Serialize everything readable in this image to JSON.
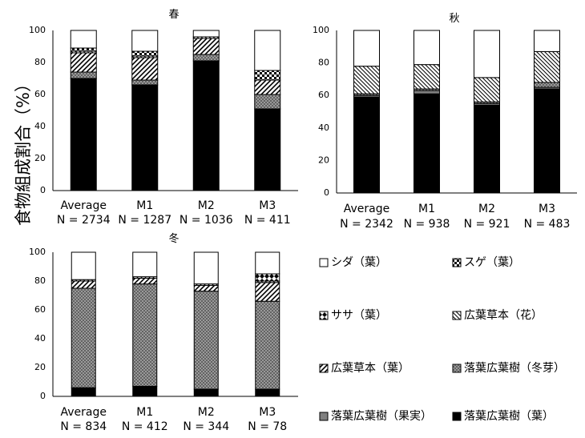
{
  "y_axis_label": "食物組成割合（%）",
  "chart_data": [
    {
      "type": "bar",
      "stacked": true,
      "title": "春",
      "ylim": [
        0,
        100
      ],
      "yticks": [
        "0",
        "20",
        "40",
        "60",
        "80",
        "100"
      ],
      "categories": [
        "Average",
        "M1",
        "M2",
        "M3"
      ],
      "sample_sizes": [
        "N = 2734",
        "N = 1287",
        "N = 1036",
        "N = 411"
      ],
      "series": [
        {
          "name": "落葉広葉樹（葉）",
          "values": [
            70,
            66,
            81,
            51
          ]
        },
        {
          "name": "落葉広葉樹（果実）",
          "values": [
            0,
            0,
            0,
            0
          ]
        },
        {
          "name": "落葉広葉樹（冬芽）",
          "values": [
            4,
            3,
            4,
            9
          ]
        },
        {
          "name": "広葉草本（葉）",
          "values": [
            12,
            14,
            10,
            9
          ]
        },
        {
          "name": "広葉草本（花）",
          "values": [
            1,
            1,
            1,
            0
          ]
        },
        {
          "name": "ササ（葉）",
          "values": [
            0,
            0,
            0,
            0
          ]
        },
        {
          "name": "スゲ（葉）",
          "values": [
            2,
            3,
            0,
            6
          ]
        },
        {
          "name": "シダ（葉）",
          "values": [
            11,
            13,
            4,
            25
          ]
        }
      ]
    },
    {
      "type": "bar",
      "stacked": true,
      "title": "秋",
      "ylim": [
        0,
        100
      ],
      "yticks": [
        "0",
        "20",
        "40",
        "60",
        "80",
        "100"
      ],
      "categories": [
        "Average",
        "M1",
        "M2",
        "M3"
      ],
      "sample_sizes": [
        "N = 2342",
        "N = 938",
        "N = 921",
        "N = 483"
      ],
      "series": [
        {
          "name": "落葉広葉樹（葉）",
          "values": [
            59,
            61,
            54,
            64
          ]
        },
        {
          "name": "落葉広葉樹（果実）",
          "values": [
            1,
            2,
            1,
            1
          ]
        },
        {
          "name": "落葉広葉樹（冬芽）",
          "values": [
            1,
            1,
            1,
            3
          ]
        },
        {
          "name": "広葉草本（葉）",
          "values": [
            0,
            0,
            0,
            0
          ]
        },
        {
          "name": "広葉草本（花）",
          "values": [
            17,
            15,
            15,
            19
          ]
        },
        {
          "name": "ササ（葉）",
          "values": [
            0,
            0,
            0,
            0
          ]
        },
        {
          "name": "スゲ（葉）",
          "values": [
            0,
            0,
            0,
            0
          ]
        },
        {
          "name": "シダ（葉）",
          "values": [
            22,
            21,
            29,
            13
          ]
        }
      ]
    },
    {
      "type": "bar",
      "stacked": true,
      "title": "冬",
      "ylim": [
        0,
        100
      ],
      "yticks": [
        "0",
        "20",
        "40",
        "60",
        "80",
        "100"
      ],
      "categories": [
        "Average",
        "M1",
        "M2",
        "M3"
      ],
      "sample_sizes": [
        "N = 834",
        "N = 412",
        "N = 344",
        "N = 78"
      ],
      "series": [
        {
          "name": "落葉広葉樹（葉）",
          "values": [
            6,
            7,
            5,
            5
          ]
        },
        {
          "name": "落葉広葉樹（果実）",
          "values": [
            0,
            0,
            0,
            0
          ]
        },
        {
          "name": "落葉広葉樹（冬芽）",
          "values": [
            69,
            71,
            68,
            61
          ]
        },
        {
          "name": "広葉草本（葉）",
          "values": [
            5,
            4,
            4,
            13
          ]
        },
        {
          "name": "広葉草本（花）",
          "values": [
            1,
            1,
            1,
            1
          ]
        },
        {
          "name": "ササ（葉）",
          "values": [
            0,
            0,
            0,
            5
          ]
        },
        {
          "name": "スゲ（葉）",
          "values": [
            0,
            0,
            0,
            0
          ]
        },
        {
          "name": "シダ（葉）",
          "values": [
            19,
            17,
            22,
            15
          ]
        }
      ]
    }
  ],
  "legend": [
    {
      "label": "シダ（葉）",
      "pattern": "white"
    },
    {
      "label": "スゲ（葉）",
      "pattern": "checker"
    },
    {
      "label": "ササ（葉）",
      "pattern": "dots"
    },
    {
      "label": "広葉草本（花）",
      "pattern": "hatch-back"
    },
    {
      "label": "広葉草本（葉）",
      "pattern": "hatch-fwd"
    },
    {
      "label": "落葉広葉樹（冬芽）",
      "pattern": "crosshatch"
    },
    {
      "label": "落葉広葉樹（果実）",
      "pattern": "gray"
    },
    {
      "label": "落葉広葉樹（葉）",
      "pattern": "black"
    }
  ]
}
